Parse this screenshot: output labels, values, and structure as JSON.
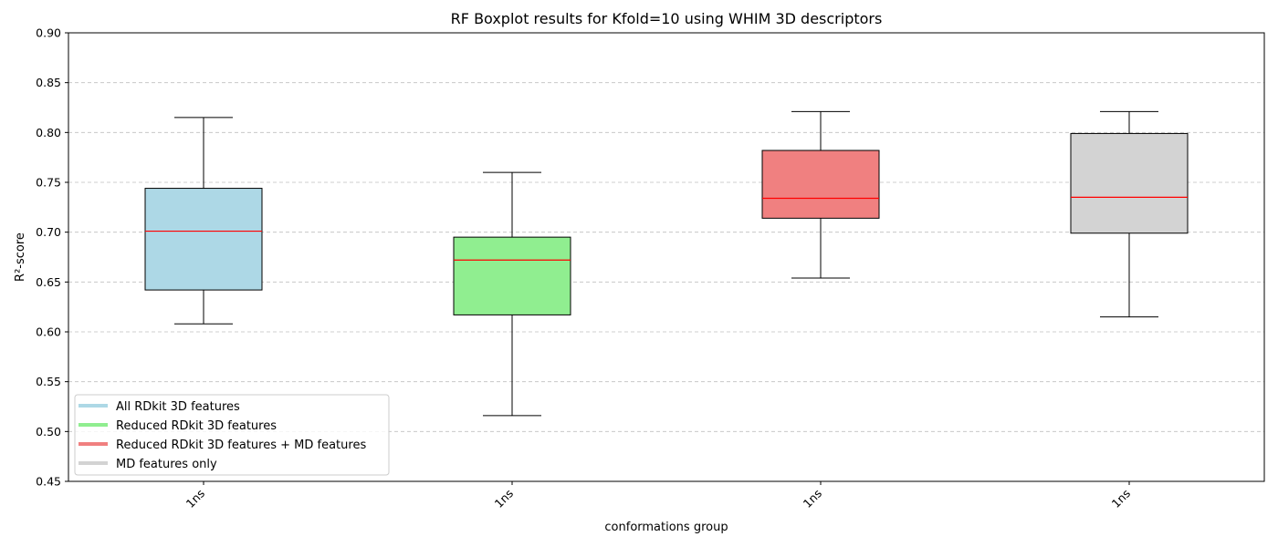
{
  "chart_data": {
    "type": "box",
    "title": "RF Boxplot results for Kfold=10 using WHIM 3D descriptors",
    "xlabel": "conformations group",
    "ylabel": "R²-score",
    "ylim": [
      0.45,
      0.9
    ],
    "yticks": [
      "0.45",
      "0.50",
      "0.55",
      "0.60",
      "0.65",
      "0.70",
      "0.75",
      "0.80",
      "0.85",
      "0.90"
    ],
    "grid": "y-dashed",
    "legend_position": "lower-left",
    "categories": [
      "1ns",
      "1ns",
      "1ns",
      "1ns"
    ],
    "series": [
      {
        "name": "All RDkit 3D features",
        "color": "#add8e6",
        "whisker_low": 0.608,
        "q1": 0.642,
        "median": 0.701,
        "q3": 0.744,
        "whisker_high": 0.815
      },
      {
        "name": "Reduced RDkit 3D features",
        "color": "#90ee90",
        "whisker_low": 0.516,
        "q1": 0.617,
        "median": 0.672,
        "q3": 0.695,
        "whisker_high": 0.76
      },
      {
        "name": "Reduced RDkit 3D features + MD features",
        "color": "#f08080",
        "whisker_low": 0.654,
        "q1": 0.714,
        "median": 0.734,
        "q3": 0.782,
        "whisker_high": 0.821
      },
      {
        "name": "MD features only",
        "color": "#d3d3d3",
        "whisker_low": 0.615,
        "q1": 0.699,
        "median": 0.735,
        "q3": 0.799,
        "whisker_high": 0.821
      }
    ],
    "median_color": "#ff0000"
  }
}
